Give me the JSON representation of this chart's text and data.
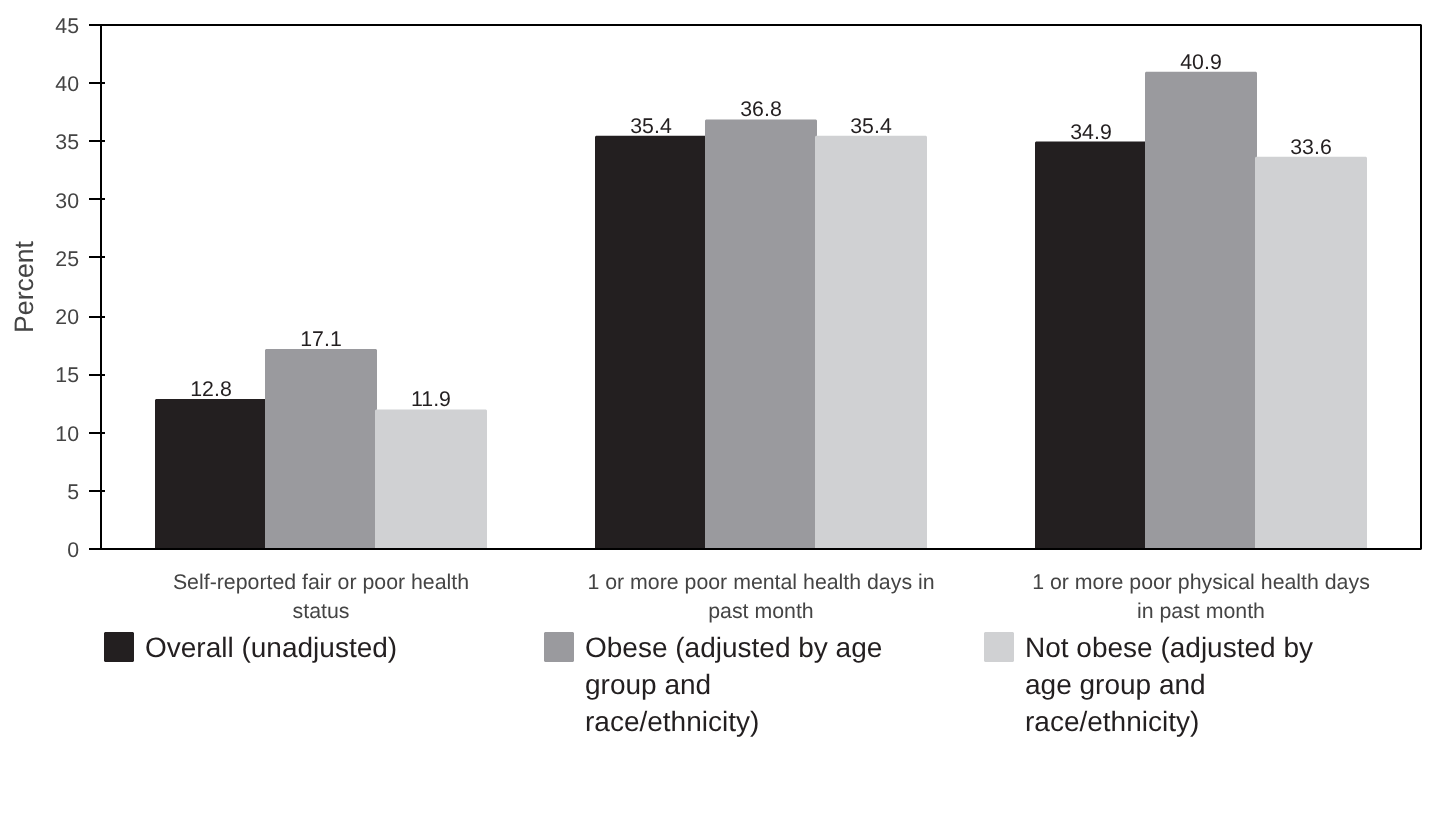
{
  "chart_data": {
    "type": "bar",
    "ylabel": "Percent",
    "categories": [
      "Self-reported fair or poor health status",
      "1 or more poor mental health days in past month",
      "1 or more poor physical health days in past month"
    ],
    "series": [
      {
        "name": "Overall (unadjusted)",
        "color": "#231f20",
        "values": [
          12.8,
          35.4,
          34.9
        ]
      },
      {
        "name": "Obese (adjusted by age group and race/ethnicity)",
        "color": "#9a9a9e",
        "values": [
          17.1,
          36.8,
          40.9
        ]
      },
      {
        "name": "Not obese (adjusted by age group and race/ethnicity)",
        "color": "#d0d1d3",
        "values": [
          11.9,
          35.4,
          33.6
        ]
      }
    ],
    "ylim": [
      0,
      45
    ],
    "yticks": [
      0,
      5,
      10,
      15,
      20,
      25,
      30,
      35,
      40,
      45
    ],
    "grid": false,
    "legend": "bottom",
    "data_labels": true
  }
}
